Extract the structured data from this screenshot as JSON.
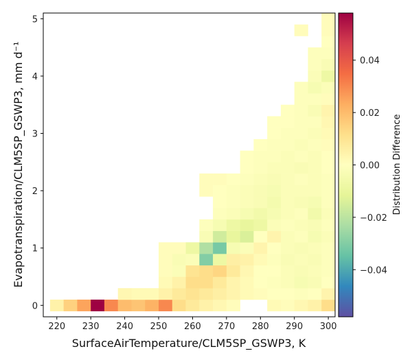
{
  "chart_data": {
    "type": "heatmap",
    "xlabel": "SurfaceAirTemperature/CLM5SP_GSWP3,  K",
    "ylabel": "Evapotranspiration/CLM5SP_GSWP3,  mm d⁻¹",
    "colorbar_label": "Distribution Difference",
    "colormap": "Spectral_r",
    "xlim": [
      216,
      302
    ],
    "ylim": [
      -0.2,
      5.1
    ],
    "xticks": [
      220,
      230,
      240,
      250,
      260,
      270,
      280,
      290,
      300
    ],
    "yticks": [
      0,
      1,
      2,
      3,
      4,
      5
    ],
    "clim": [
      -0.058,
      0.058
    ],
    "cbar_ticks": [
      -0.04,
      -0.02,
      0.0,
      0.02,
      0.04
    ],
    "cbar_tick_labels": [
      "−0.04",
      "−0.02",
      "0.00",
      "0.02",
      "0.04"
    ],
    "bin_width_x": 4,
    "bin_height_y": 0.2,
    "cells": [
      [
        220,
        0.0,
        0.005
      ],
      [
        224,
        0.0,
        0.015
      ],
      [
        228,
        0.0,
        0.025
      ],
      [
        232,
        0.0,
        0.058
      ],
      [
        236,
        0.0,
        0.03
      ],
      [
        240,
        0.0,
        0.02
      ],
      [
        244,
        0.0,
        0.018
      ],
      [
        248,
        0.0,
        0.022
      ],
      [
        252,
        0.0,
        0.03
      ],
      [
        256,
        0.0,
        0.012
      ],
      [
        260,
        0.0,
        0.008
      ],
      [
        264,
        0.0,
        0.005
      ],
      [
        268,
        0.0,
        0.003
      ],
      [
        272,
        0.0,
        0.001
      ],
      [
        284,
        0.0,
        0.002
      ],
      [
        288,
        0.0,
        0.001
      ],
      [
        292,
        0.0,
        0.003
      ],
      [
        296,
        0.0,
        0.005
      ],
      [
        300,
        0.0,
        0.012
      ],
      [
        240,
        0.2,
        0.003
      ],
      [
        244,
        0.2,
        0.002
      ],
      [
        248,
        0.2,
        0.002
      ],
      [
        252,
        0.2,
        0.005
      ],
      [
        256,
        0.2,
        0.008
      ],
      [
        260,
        0.2,
        0.01
      ],
      [
        264,
        0.2,
        0.008
      ],
      [
        268,
        0.2,
        0.006
      ],
      [
        272,
        0.2,
        0.004
      ],
      [
        276,
        0.2,
        0.002
      ],
      [
        280,
        0.2,
        0.001
      ],
      [
        284,
        0.2,
        0.0
      ],
      [
        288,
        0.2,
        0.0
      ],
      [
        292,
        0.2,
        -0.001
      ],
      [
        296,
        0.2,
        0.0
      ],
      [
        300,
        0.2,
        0.004
      ],
      [
        252,
        0.4,
        0.002
      ],
      [
        256,
        0.4,
        0.005
      ],
      [
        260,
        0.4,
        0.012
      ],
      [
        264,
        0.4,
        0.012
      ],
      [
        268,
        0.4,
        0.008
      ],
      [
        272,
        0.4,
        0.004
      ],
      [
        276,
        0.4,
        0.002
      ],
      [
        280,
        0.4,
        0.0
      ],
      [
        284,
        0.4,
        -0.001
      ],
      [
        288,
        0.4,
        -0.002
      ],
      [
        292,
        0.4,
        -0.004
      ],
      [
        296,
        0.4,
        -0.003
      ],
      [
        300,
        0.4,
        0.0
      ],
      [
        252,
        0.6,
        0.001
      ],
      [
        256,
        0.6,
        -0.002
      ],
      [
        260,
        0.6,
        0.01
      ],
      [
        264,
        0.6,
        0.012
      ],
      [
        268,
        0.6,
        0.014
      ],
      [
        272,
        0.6,
        0.008
      ],
      [
        276,
        0.6,
        0.003
      ],
      [
        280,
        0.6,
        0.0
      ],
      [
        284,
        0.6,
        0.0
      ],
      [
        288,
        0.6,
        -0.002
      ],
      [
        292,
        0.6,
        -0.003
      ],
      [
        296,
        0.6,
        -0.002
      ],
      [
        300,
        0.6,
        -0.001
      ],
      [
        252,
        0.8,
        0.001
      ],
      [
        256,
        0.8,
        -0.003
      ],
      [
        260,
        0.8,
        -0.002
      ],
      [
        264,
        0.8,
        -0.03
      ],
      [
        268,
        0.8,
        -0.008
      ],
      [
        272,
        0.8,
        0.006
      ],
      [
        276,
        0.8,
        0.005
      ],
      [
        280,
        0.8,
        0.002
      ],
      [
        284,
        0.8,
        -0.001
      ],
      [
        288,
        0.8,
        -0.003
      ],
      [
        292,
        0.8,
        -0.002
      ],
      [
        296,
        0.8,
        -0.003
      ],
      [
        300,
        0.8,
        -0.001
      ],
      [
        252,
        1.0,
        0.001
      ],
      [
        256,
        1.0,
        0.001
      ],
      [
        260,
        1.0,
        -0.008
      ],
      [
        264,
        1.0,
        -0.022
      ],
      [
        268,
        1.0,
        -0.032
      ],
      [
        272,
        1.0,
        -0.004
      ],
      [
        276,
        1.0,
        -0.002
      ],
      [
        280,
        1.0,
        0.004
      ],
      [
        284,
        1.0,
        0.0
      ],
      [
        288,
        1.0,
        -0.002
      ],
      [
        292,
        1.0,
        -0.003
      ],
      [
        296,
        1.0,
        -0.002
      ],
      [
        300,
        1.0,
        -0.001
      ],
      [
        264,
        1.2,
        -0.003
      ],
      [
        268,
        1.2,
        -0.016
      ],
      [
        272,
        1.2,
        -0.01
      ],
      [
        276,
        1.2,
        -0.014
      ],
      [
        280,
        1.2,
        0.0
      ],
      [
        284,
        1.2,
        0.004
      ],
      [
        288,
        1.2,
        -0.002
      ],
      [
        292,
        1.2,
        -0.001
      ],
      [
        296,
        1.2,
        -0.004
      ],
      [
        300,
        1.2,
        -0.002
      ],
      [
        264,
        1.4,
        -0.001
      ],
      [
        268,
        1.4,
        -0.004
      ],
      [
        272,
        1.4,
        -0.008
      ],
      [
        276,
        1.4,
        -0.01
      ],
      [
        280,
        1.4,
        -0.008
      ],
      [
        284,
        1.4,
        -0.002
      ],
      [
        288,
        1.4,
        -0.001
      ],
      [
        292,
        1.4,
        -0.002
      ],
      [
        296,
        1.4,
        -0.003
      ],
      [
        300,
        1.4,
        -0.001
      ],
      [
        268,
        1.6,
        -0.001
      ],
      [
        272,
        1.6,
        -0.002
      ],
      [
        276,
        1.6,
        -0.004
      ],
      [
        280,
        1.6,
        -0.006
      ],
      [
        284,
        1.6,
        -0.004
      ],
      [
        288,
        1.6,
        -0.002
      ],
      [
        292,
        1.6,
        -0.001
      ],
      [
        296,
        1.6,
        -0.006
      ],
      [
        300,
        1.6,
        -0.002
      ],
      [
        268,
        1.8,
        0.0
      ],
      [
        272,
        1.8,
        -0.001
      ],
      [
        276,
        1.8,
        -0.002
      ],
      [
        280,
        1.8,
        -0.003
      ],
      [
        284,
        1.8,
        -0.005
      ],
      [
        288,
        1.8,
        -0.002
      ],
      [
        292,
        1.8,
        -0.003
      ],
      [
        296,
        1.8,
        -0.004
      ],
      [
        300,
        1.8,
        -0.001
      ],
      [
        264,
        2.0,
        0.001
      ],
      [
        268,
        2.0,
        0.0
      ],
      [
        272,
        2.0,
        -0.001
      ],
      [
        276,
        2.0,
        -0.002
      ],
      [
        280,
        2.0,
        -0.003
      ],
      [
        284,
        2.0,
        -0.004
      ],
      [
        288,
        2.0,
        -0.002
      ],
      [
        292,
        2.0,
        -0.002
      ],
      [
        296,
        2.0,
        -0.002
      ],
      [
        300,
        2.0,
        -0.001
      ],
      [
        264,
        2.2,
        0.001
      ],
      [
        268,
        2.2,
        0.001
      ],
      [
        272,
        2.2,
        0.0
      ],
      [
        276,
        2.2,
        -0.001
      ],
      [
        280,
        2.2,
        -0.002
      ],
      [
        284,
        2.2,
        -0.003
      ],
      [
        288,
        2.2,
        -0.002
      ],
      [
        292,
        2.2,
        -0.001
      ],
      [
        296,
        2.2,
        -0.002
      ],
      [
        300,
        2.2,
        -0.001
      ],
      [
        276,
        2.4,
        0.0
      ],
      [
        280,
        2.4,
        -0.001
      ],
      [
        284,
        2.4,
        -0.002
      ],
      [
        288,
        2.4,
        -0.002
      ],
      [
        292,
        2.4,
        -0.003
      ],
      [
        296,
        2.4,
        -0.002
      ],
      [
        300,
        2.4,
        0.0
      ],
      [
        276,
        2.6,
        0.0
      ],
      [
        280,
        2.6,
        -0.001
      ],
      [
        284,
        2.6,
        -0.001
      ],
      [
        288,
        2.6,
        -0.002
      ],
      [
        292,
        2.6,
        -0.001
      ],
      [
        296,
        2.6,
        -0.002
      ],
      [
        300,
        2.6,
        0.0
      ],
      [
        280,
        2.8,
        0.0
      ],
      [
        284,
        2.8,
        -0.001
      ],
      [
        288,
        2.8,
        -0.001
      ],
      [
        292,
        2.8,
        -0.002
      ],
      [
        296,
        2.8,
        -0.001
      ],
      [
        300,
        2.8,
        0.001
      ],
      [
        284,
        3.0,
        0.0
      ],
      [
        288,
        3.0,
        -0.001
      ],
      [
        292,
        3.0,
        -0.001
      ],
      [
        296,
        3.0,
        -0.002
      ],
      [
        300,
        3.0,
        0.002
      ],
      [
        284,
        3.2,
        0.0
      ],
      [
        288,
        3.2,
        0.0
      ],
      [
        292,
        3.2,
        -0.001
      ],
      [
        296,
        3.2,
        -0.001
      ],
      [
        300,
        3.2,
        0.003
      ],
      [
        288,
        3.4,
        0.0
      ],
      [
        292,
        3.4,
        -0.001
      ],
      [
        296,
        3.4,
        -0.003
      ],
      [
        300,
        3.4,
        0.004
      ],
      [
        292,
        3.6,
        -0.001
      ],
      [
        296,
        3.6,
        -0.001
      ],
      [
        300,
        3.6,
        0.001
      ],
      [
        292,
        3.8,
        -0.001
      ],
      [
        296,
        3.8,
        -0.004
      ],
      [
        300,
        3.8,
        -0.002
      ],
      [
        296,
        4.0,
        -0.002
      ],
      [
        300,
        4.0,
        -0.008
      ],
      [
        296,
        4.2,
        -0.001
      ],
      [
        300,
        4.2,
        -0.003
      ],
      [
        296,
        4.4,
        -0.001
      ],
      [
        300,
        4.4,
        -0.001
      ],
      [
        300,
        4.6,
        0.0
      ],
      [
        292,
        4.8,
        0.001
      ],
      [
        300,
        4.8,
        0.001
      ],
      [
        300,
        5.0,
        0.001
      ]
    ]
  }
}
